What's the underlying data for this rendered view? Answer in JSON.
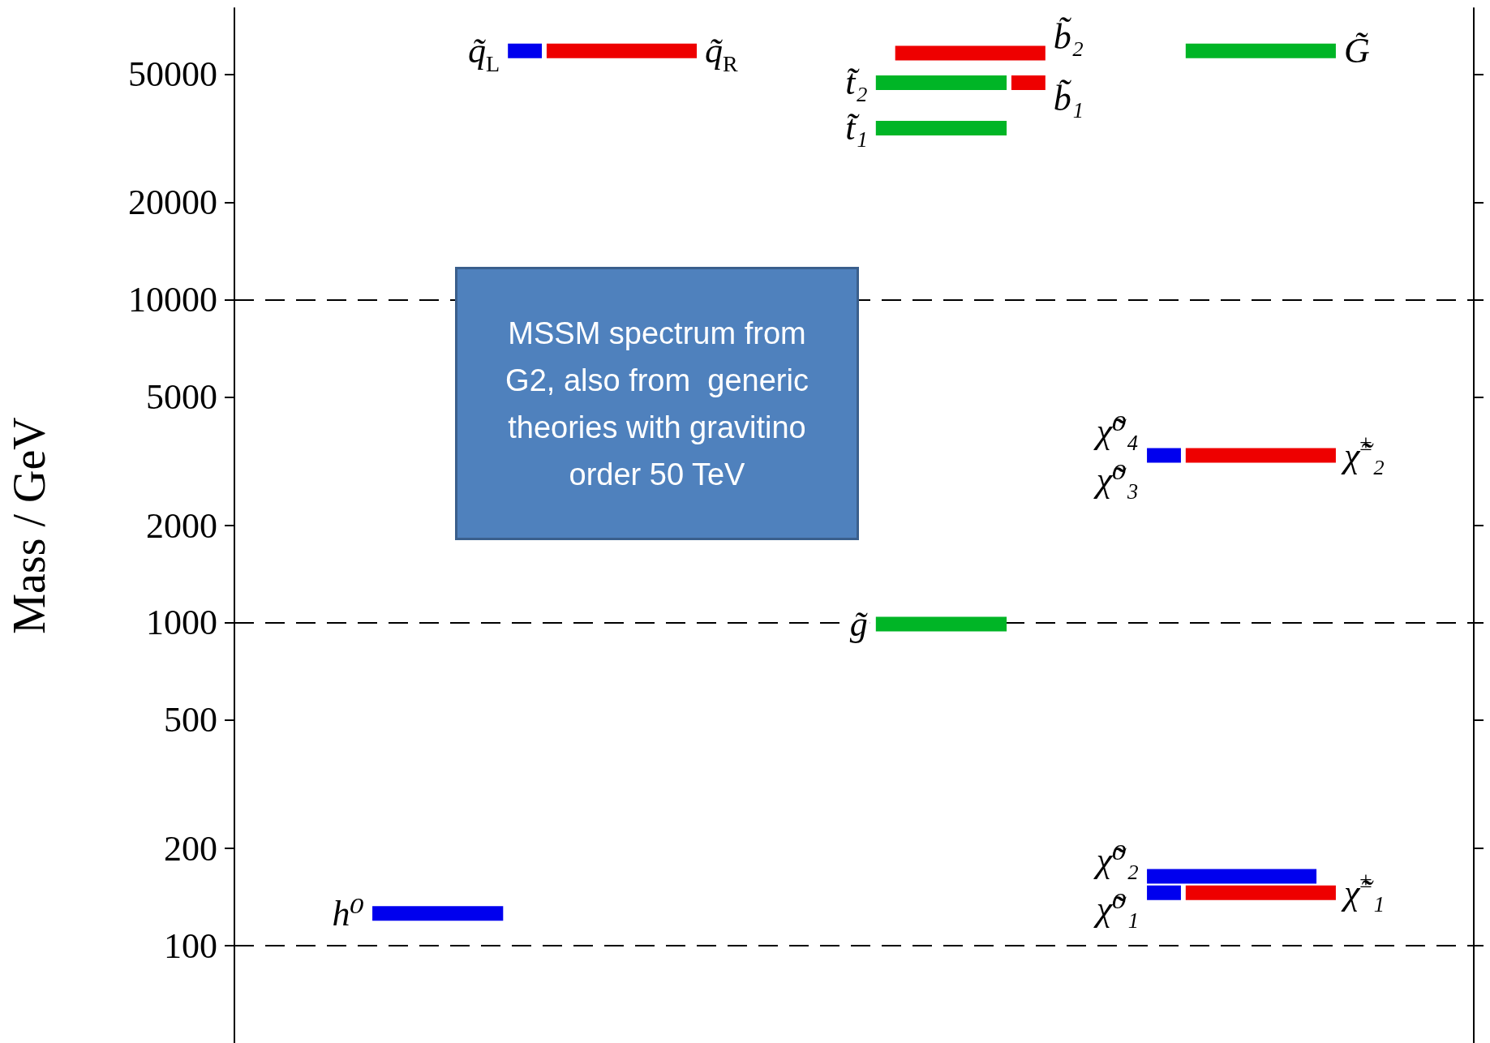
{
  "chart_data": {
    "type": "line",
    "ylabel": "Mass / GeV",
    "log": true,
    "ylim": [
      50,
      80000
    ],
    "yticks": [
      100,
      200,
      500,
      1000,
      2000,
      5000,
      10000,
      20000,
      50000
    ],
    "tick_labels": "y",
    "legend": false,
    "marker": "none",
    "line_style": "solid",
    "categories": [
      null,
      null,
      null,
      null,
      null,
      null,
      null,
      null,
      null,
      null,
      null,
      null,
      null,
      null,
      null,
      null,
      null,
      null,
      null,
      null,
      null,
      null,
      null,
      null,
      null,
      null,
      null,
      null,
      null,
      null,
      null,
      null,
      null,
      null,
      null,
      null,
      null,
      null,
      null,
      null,
      null,
      null,
      null,
      null,
      null,
      null,
      null,
      null,
      null,
      null,
      null,
      null,
      null,
      null,
      null,
      null,
      null,
      null,
      null,
      null,
      null,
      null,
      null,
      null
    ],
    "series": [
      {
        "name": "h⁰",
        "color": "#0000ee",
        "values": [
          null,
          null,
          null,
          null,
          null,
          null,
          null,
          126,
          126,
          126,
          126,
          126,
          126,
          126,
          null,
          null,
          null,
          null,
          null,
          null,
          null,
          null,
          null,
          null,
          null,
          null,
          null,
          null,
          null,
          null,
          null,
          null,
          null,
          null,
          null,
          null,
          null,
          null,
          null,
          null,
          null,
          null,
          null,
          null,
          null,
          null,
          null,
          null,
          null,
          null,
          null,
          null,
          null,
          null,
          null,
          null,
          null,
          null,
          null,
          null,
          null,
          null,
          null,
          null
        ]
      },
      {
        "name": "q̃$_{L}$",
        "color": "#0000ee",
        "values": [
          null,
          null,
          null,
          null,
          null,
          null,
          null,
          null,
          null,
          null,
          null,
          null,
          null,
          null,
          59000,
          59000,
          null,
          null,
          null,
          null,
          null,
          null,
          null,
          null,
          null,
          null,
          null,
          null,
          null,
          null,
          null,
          null,
          null,
          null,
          null,
          null,
          null,
          null,
          null,
          null,
          null,
          null,
          null,
          null,
          null,
          null,
          null,
          null,
          null,
          null,
          null,
          null,
          null,
          null,
          null,
          null,
          null,
          null,
          null,
          null,
          null,
          null,
          null,
          null
        ]
      },
      {
        "name": "q̃$_{R}$",
        "color": "#ee0000",
        "values": [
          null,
          null,
          null,
          null,
          null,
          null,
          null,
          null,
          null,
          null,
          null,
          null,
          null,
          null,
          null,
          null,
          59000,
          59000,
          59000,
          59000,
          59000,
          59000,
          59000,
          59000,
          null,
          null,
          null,
          null,
          null,
          null,
          null,
          null,
          null,
          null,
          null,
          null,
          null,
          null,
          null,
          null,
          null,
          null,
          null,
          null,
          null,
          null,
          null,
          null,
          null,
          null,
          null,
          null,
          null,
          null,
          null,
          null,
          null,
          null,
          null,
          null,
          null,
          null,
          null,
          null
        ]
      },
      {
        "name": "b̃₂",
        "color": "#ee0000",
        "values": [
          null,
          null,
          null,
          null,
          null,
          null,
          null,
          null,
          null,
          null,
          null,
          null,
          null,
          null,
          null,
          null,
          null,
          null,
          null,
          null,
          null,
          null,
          null,
          null,
          null,
          null,
          null,
          null,
          null,
          null,
          null,
          null,
          null,
          null,
          58000,
          58000,
          58000,
          58000,
          58000,
          58000,
          58000,
          58000,
          null,
          null,
          null,
          null,
          null,
          null,
          null,
          null,
          null,
          null,
          null,
          null,
          null,
          null,
          null,
          null,
          null,
          null,
          null,
          null,
          null,
          null
        ]
      },
      {
        "name": "t̃₂",
        "color": "#00b526",
        "values": [
          null,
          null,
          null,
          null,
          null,
          null,
          null,
          null,
          null,
          null,
          null,
          null,
          null,
          null,
          null,
          null,
          null,
          null,
          null,
          null,
          null,
          null,
          null,
          null,
          null,
          null,
          null,
          null,
          null,
          null,
          null,
          null,
          null,
          47000,
          47000,
          47000,
          47000,
          47000,
          47000,
          47000,
          null,
          null,
          null,
          null,
          null,
          null,
          null,
          null,
          null,
          null,
          null,
          null,
          null,
          null,
          null,
          null,
          null,
          null,
          null,
          null,
          null,
          null,
          null,
          null
        ]
      },
      {
        "name": "b̃₁",
        "color": "#ee0000",
        "values": [
          null,
          null,
          null,
          null,
          null,
          null,
          null,
          null,
          null,
          null,
          null,
          null,
          null,
          null,
          null,
          null,
          null,
          null,
          null,
          null,
          null,
          null,
          null,
          null,
          null,
          null,
          null,
          null,
          null,
          null,
          null,
          null,
          null,
          null,
          null,
          null,
          null,
          null,
          null,
          null,
          47000,
          47000,
          null,
          null,
          null,
          null,
          null,
          null,
          null,
          null,
          null,
          null,
          null,
          null,
          null,
          null,
          null,
          null,
          null,
          null,
          null,
          null,
          null,
          null
        ]
      },
      {
        "name": "t̃₁",
        "color": "#00b526",
        "values": [
          null,
          null,
          null,
          null,
          null,
          null,
          null,
          null,
          null,
          null,
          null,
          null,
          null,
          null,
          null,
          null,
          null,
          null,
          null,
          null,
          null,
          null,
          null,
          null,
          null,
          null,
          null,
          null,
          null,
          null,
          null,
          null,
          null,
          34000,
          34000,
          34000,
          34000,
          34000,
          34000,
          34000,
          null,
          null,
          null,
          null,
          null,
          null,
          null,
          null,
          null,
          null,
          null,
          null,
          null,
          null,
          null,
          null,
          null,
          null,
          null,
          null,
          null,
          null,
          null,
          null
        ]
      },
      {
        "name": "g̃",
        "color": "#00b526",
        "values": [
          null,
          null,
          null,
          null,
          null,
          null,
          null,
          null,
          null,
          null,
          null,
          null,
          null,
          null,
          null,
          null,
          null,
          null,
          null,
          null,
          null,
          null,
          null,
          null,
          null,
          null,
          null,
          null,
          null,
          null,
          null,
          null,
          null,
          990,
          990,
          990,
          990,
          990,
          990,
          990,
          null,
          null,
          null,
          null,
          null,
          null,
          null,
          null,
          null,
          null,
          null,
          null,
          null,
          null,
          null,
          null,
          null,
          null,
          null,
          null,
          null,
          null,
          null,
          null
        ]
      },
      {
        "name": "G̃",
        "color": "#00b526",
        "values": [
          null,
          null,
          null,
          null,
          null,
          null,
          null,
          null,
          null,
          null,
          null,
          null,
          null,
          null,
          null,
          null,
          null,
          null,
          null,
          null,
          null,
          null,
          null,
          null,
          null,
          null,
          null,
          null,
          null,
          null,
          null,
          null,
          null,
          null,
          null,
          null,
          null,
          null,
          null,
          null,
          null,
          null,
          null,
          null,
          null,
          null,
          null,
          null,
          null,
          59000,
          59000,
          59000,
          59000,
          59000,
          59000,
          59000,
          59000,
          null,
          null,
          null,
          null,
          null,
          null,
          null
        ]
      },
      {
        "name": "χ̃⁰₄\nχ̃⁰₃",
        "color": "#0000ee",
        "values": [
          null,
          null,
          null,
          null,
          null,
          null,
          null,
          null,
          null,
          null,
          null,
          null,
          null,
          null,
          null,
          null,
          null,
          null,
          null,
          null,
          null,
          null,
          null,
          null,
          null,
          null,
          null,
          null,
          null,
          null,
          null,
          null,
          null,
          null,
          null,
          null,
          null,
          null,
          null,
          null,
          null,
          null,
          null,
          null,
          null,
          null,
          null,
          3300,
          3300,
          null,
          null,
          null,
          null,
          null,
          null,
          null,
          null,
          null,
          null,
          null,
          null,
          null,
          null,
          null
        ]
      },
      {
        "name": "χ̃$^{±}$₂",
        "color": "#ee0000",
        "values": [
          null,
          null,
          null,
          null,
          null,
          null,
          null,
          null,
          null,
          null,
          null,
          null,
          null,
          null,
          null,
          null,
          null,
          null,
          null,
          null,
          null,
          null,
          null,
          null,
          null,
          null,
          null,
          null,
          null,
          null,
          null,
          null,
          null,
          null,
          null,
          null,
          null,
          null,
          null,
          null,
          null,
          null,
          null,
          null,
          null,
          null,
          null,
          null,
          null,
          3300,
          3300,
          3300,
          3300,
          3300,
          3300,
          3300,
          3300,
          null,
          null,
          null,
          null,
          null,
          null,
          null
        ]
      },
      {
        "name": "χ̃⁰₂",
        "color": "#0000ee",
        "values": [
          null,
          null,
          null,
          null,
          null,
          null,
          null,
          null,
          null,
          null,
          null,
          null,
          null,
          null,
          null,
          null,
          null,
          null,
          null,
          null,
          null,
          null,
          null,
          null,
          null,
          null,
          null,
          null,
          null,
          null,
          null,
          null,
          null,
          null,
          null,
          null,
          null,
          null,
          null,
          null,
          null,
          null,
          null,
          null,
          null,
          null,
          null,
          164,
          164,
          164,
          164,
          164,
          164,
          164,
          164,
          164,
          null,
          null,
          null,
          null,
          null,
          null,
          null,
          null
        ]
      },
      {
        "name": "χ̃⁰₁",
        "color": "#0000ee",
        "values": [
          null,
          null,
          null,
          null,
          null,
          null,
          null,
          null,
          null,
          null,
          null,
          null,
          null,
          null,
          null,
          null,
          null,
          null,
          null,
          null,
          null,
          null,
          null,
          null,
          null,
          null,
          null,
          null,
          null,
          null,
          null,
          null,
          null,
          null,
          null,
          null,
          null,
          null,
          null,
          null,
          null,
          null,
          null,
          null,
          null,
          null,
          null,
          146,
          146,
          null,
          null,
          null,
          null,
          null,
          null,
          null,
          null,
          null,
          null,
          null,
          null,
          null,
          null,
          null
        ]
      },
      {
        "name": "χ̃$^{±}$₁",
        "color": "#ee0000",
        "values": [
          null,
          null,
          null,
          null,
          null,
          null,
          null,
          null,
          null,
          null,
          null,
          null,
          null,
          null,
          null,
          null,
          null,
          null,
          null,
          null,
          null,
          null,
          null,
          null,
          null,
          null,
          null,
          null,
          null,
          null,
          null,
          null,
          null,
          null,
          null,
          null,
          null,
          null,
          null,
          null,
          null,
          null,
          null,
          null,
          null,
          null,
          null,
          null,
          null,
          146,
          146,
          146,
          146,
          146,
          146,
          146,
          146,
          null,
          null,
          null,
          null,
          null,
          null,
          null
        ]
      }
    ],
    "ref_lines": [
      {
        "axis": "y",
        "value": 10000,
        "color": "#000000",
        "line_style": "dashed"
      },
      {
        "axis": "y",
        "value": 1000,
        "color": "#000000",
        "line_style": "dashed"
      },
      {
        "axis": "y",
        "value": 100,
        "color": "#000000",
        "line_style": "dashed"
      }
    ],
    "annotations": [
      "MSSM spectrum from G2, also from  generic theories with gravitino order 50 TeV"
    ]
  }
}
